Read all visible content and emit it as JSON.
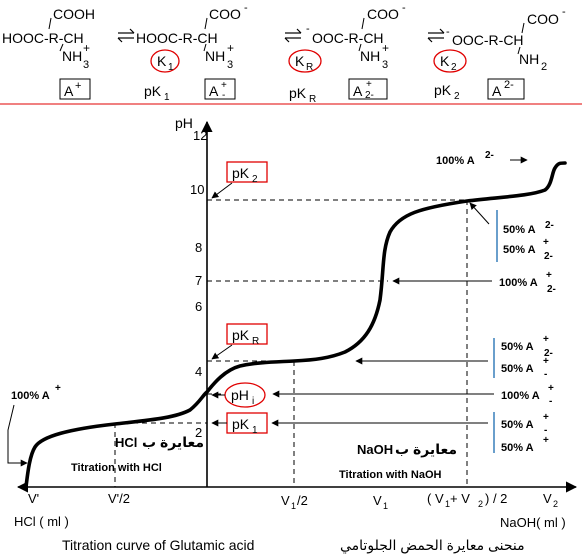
{
  "equilibrium": {
    "species": [
      {
        "top": "COOH",
        "main": "HOOC-R-CH",
        "amine": "NH",
        "amine_sub": "3",
        "amine_sup": "+"
      },
      {
        "top": "COO",
        "top_sup": "-",
        "main": "HOOC-R-CH",
        "amine": "NH",
        "amine_sub": "3",
        "amine_sup": "+"
      },
      {
        "top": "COO",
        "top_sup": "-",
        "main": "OOC-R-CH",
        "main_sup": "-",
        "amine": "NH",
        "amine_sub": "3",
        "amine_sup": "+"
      },
      {
        "top": "COO",
        "top_sup": "-",
        "main": "OOC-R-CH",
        "main_sup": "-",
        "amine": "NH",
        "amine_sub": "2"
      }
    ],
    "constants": [
      {
        "letter": "K",
        "sub": "1"
      },
      {
        "letter": "K",
        "sub": "R"
      },
      {
        "letter": "K",
        "sub": "2"
      }
    ],
    "forms": [
      {
        "letter": "A",
        "sup": "+"
      },
      {
        "letter": "A",
        "sup": "+",
        "sub": "-"
      },
      {
        "letter": "A",
        "sup": "+",
        "sub": "2-"
      },
      {
        "letter": "A",
        "sup": "2-"
      }
    ],
    "pk_labels": [
      {
        "text": "pK",
        "sub": "1"
      },
      {
        "text": "pK",
        "sub": "R"
      },
      {
        "text": "pK",
        "sub": "2"
      }
    ]
  },
  "chart_data": {
    "type": "line",
    "title": "",
    "ylabel": "pH",
    "xlabel_left": "HCl ( ml )",
    "xlabel_right": "NaOH( ml )",
    "y_ticks": [
      "12",
      "10",
      "8",
      "7",
      "6",
      "4",
      "2"
    ],
    "x_ticks": [
      {
        "main": "V'",
        "sub": ""
      },
      {
        "main": "V'/2",
        "sub": ""
      },
      {
        "main": "V",
        "sub": "1",
        "tail": "/2"
      },
      {
        "main": "V",
        "sub": "1",
        "tail": ""
      },
      {
        "main": "( V",
        "sub": "1",
        "tail": " + V",
        "sub2": "2",
        "tail2": ") / 2"
      },
      {
        "main": "V",
        "sub": "2",
        "tail": ""
      }
    ],
    "marked_levels": {
      "pK2": 9.7,
      "middle": 7,
      "pKR": 4.3,
      "pHi": 3.2,
      "pK1": 2.2
    },
    "curve_points": [
      [
        -2.1,
        0.0
      ],
      [
        -2.0,
        1.0
      ],
      [
        -1.9,
        1.5
      ],
      [
        -1.5,
        1.85
      ],
      [
        -1.0,
        2.1
      ],
      [
        -0.5,
        2.45
      ],
      [
        -0.2,
        2.8
      ],
      [
        0.0,
        3.2
      ],
      [
        0.25,
        3.8
      ],
      [
        0.6,
        4.15
      ],
      [
        1.0,
        4.3
      ],
      [
        1.5,
        4.45
      ],
      [
        1.75,
        4.8
      ],
      [
        1.85,
        5.5
      ],
      [
        1.9,
        6.5
      ],
      [
        1.93,
        7.0
      ],
      [
        1.97,
        7.8
      ],
      [
        2.05,
        8.6
      ],
      [
        2.3,
        9.25
      ],
      [
        3.0,
        9.6
      ],
      [
        3.5,
        9.8
      ],
      [
        3.9,
        10.1
      ],
      [
        4.0,
        10.8
      ],
      [
        4.05,
        11.5
      ],
      [
        4.25,
        11.6
      ]
    ]
  },
  "labels": {
    "pk2_box": {
      "text": "pK",
      "sub": "2"
    },
    "pkr_box": {
      "text": "pK",
      "sub": "R"
    },
    "phi": {
      "text": "pH",
      "sub": "i"
    },
    "pk1_box": {
      "text": "pK",
      "sub": "1"
    },
    "right": [
      {
        "id": "100a2",
        "pct": "100% A",
        "sup": "2-"
      },
      {
        "id": "50a2",
        "pct": "50% A",
        "sup": "2-"
      },
      {
        "id": "50apm2a",
        "pct": "50% A",
        "sup": "+",
        "sub": "2-"
      },
      {
        "id": "100apm2",
        "pct": "100% A",
        "sup": "+",
        "sub": "2-"
      },
      {
        "id": "50apm2b",
        "pct": "50% A",
        "sup": "+",
        "sub": "2-"
      },
      {
        "id": "50apm",
        "pct": "50% A",
        "sup": "+",
        "sub": "-"
      },
      {
        "id": "100apm",
        "pct": "100% A",
        "sup": "+",
        "sub": "-"
      },
      {
        "id": "50apm_low",
        "pct": "50% A",
        "sup": "+",
        "sub": "-"
      },
      {
        "id": "50ap",
        "pct": "50% A",
        "sup": "+"
      }
    ],
    "left_100ap": {
      "pct": "100% A",
      "sup": "+"
    },
    "hcl_arabic": "معايرة ب",
    "hcl_formula": "HCl",
    "hcl_english": "Titration with HCl",
    "naoh_arabic": "معايرة ب",
    "naoh_formula": "NaOH",
    "naoh_english": "Titration with NaOH",
    "caption_en": "Titration curve of Glutamic acid",
    "caption_ar": "منحنى معايرة الحمض الجلوتامي"
  }
}
